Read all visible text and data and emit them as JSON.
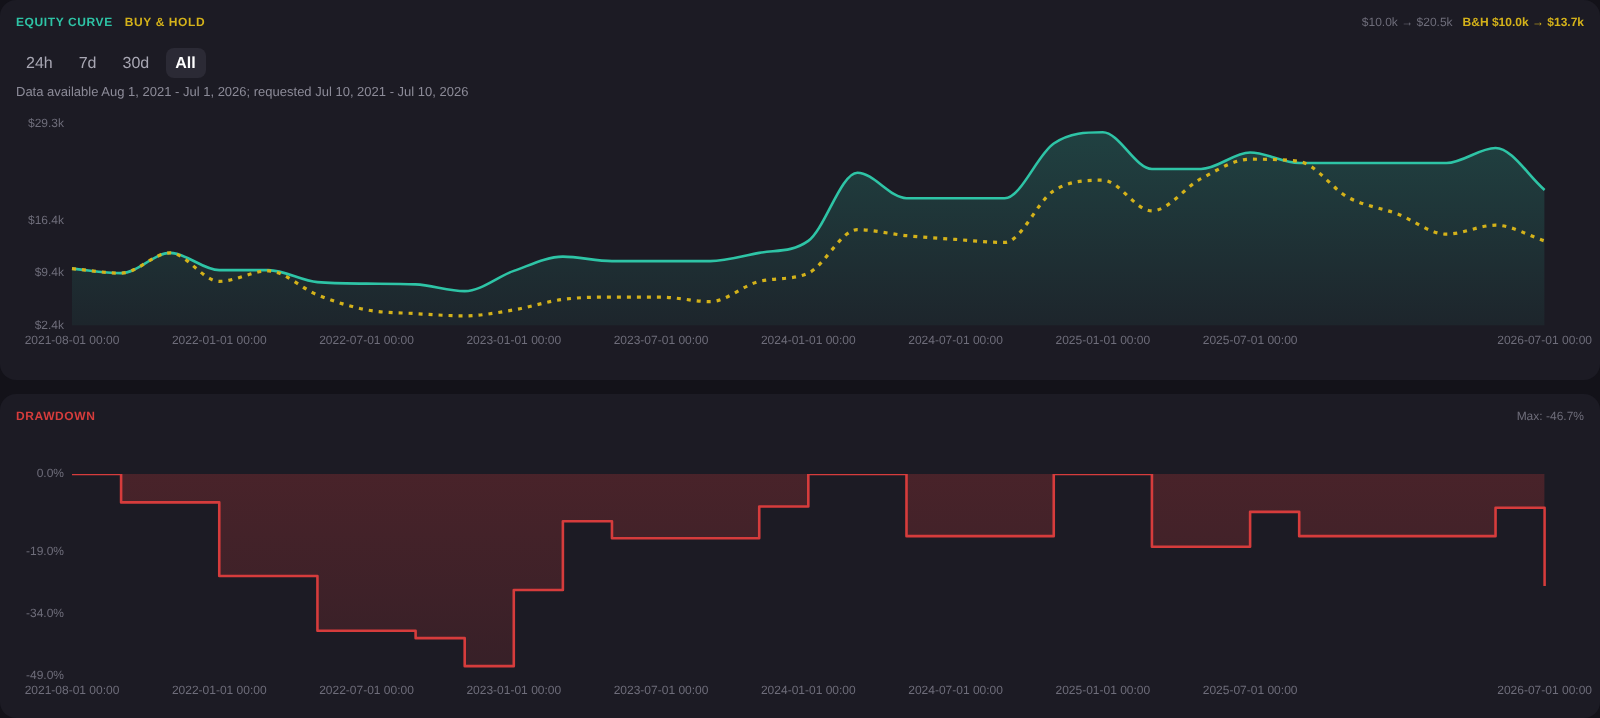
{
  "chart_data": [
    {
      "type": "line",
      "title": null,
      "subtitle": "Data available Aug 1, 2021 - Jul 1, 2026; requested Jul 10, 2021 - Jul 10, 2026",
      "annotations": [
        "$10.0k → $20.5k",
        "B&H $10.0k → $13.7k",
        "24h",
        "7d",
        "30d",
        "All"
      ],
      "categories": [
        "2021-08-01 00:00",
        null,
        null,
        "2022-01-01 00:00",
        null,
        null,
        "2022-07-01 00:00",
        null,
        null,
        "2023-01-01 00:00",
        null,
        null,
        "2023-07-01 00:00",
        null,
        null,
        "2024-01-01 00:00",
        null,
        null,
        "2024-07-01 00:00",
        null,
        null,
        "2025-01-01 00:00",
        null,
        null,
        "2025-07-01 00:00",
        null,
        null,
        null,
        null,
        null,
        "2026-07-01 00:00"
      ],
      "series": [
        {
          "name": "EQUITY CURVE",
          "type": "area",
          "color": "#2ec4a6",
          "line_style": "solid",
          "values": [
            10.0,
            9.4,
            12.1,
            9.8,
            9.8,
            8.2,
            8.0,
            7.9,
            7.0,
            9.7,
            11.6,
            11.0,
            11.0,
            11.0,
            12.1,
            13.7,
            22.8,
            19.4,
            19.4,
            19.4,
            26.7,
            28.2,
            23.3,
            23.3,
            25.5,
            24.1,
            24.1,
            24.1,
            24.1,
            26.1,
            20.5
          ]
        },
        {
          "name": "BUY & HOLD",
          "color": "#d4b21a",
          "line_style": "dotted",
          "values": [
            10.0,
            9.4,
            12.1,
            8.3,
            9.7,
            6.5,
            4.5,
            4.0,
            3.7,
            4.5,
            5.9,
            6.2,
            6.2,
            5.6,
            8.3,
            9.4,
            15.2,
            14.4,
            13.9,
            13.5,
            20.4,
            21.8,
            17.7,
            22.0,
            24.6,
            24.3,
            19.5,
            17.3,
            14.6,
            15.8,
            13.7
          ]
        }
      ],
      "ylim": [
        2.4,
        29.3
      ],
      "yticks": [
        {
          "value": 2.4,
          "label": "$2.4k"
        },
        {
          "value": 9.4,
          "label": "$9.4k"
        },
        {
          "value": 16.4,
          "label": "$16.4k"
        },
        {
          "value": 29.3,
          "label": "$29.3k"
        }
      ],
      "legend": "top left",
      "marker": "none"
    },
    {
      "type": "step",
      "title": "DRAWDOWN",
      "annotations": [
        "Max: -46.7%"
      ],
      "categories": [
        "2021-08-01 00:00",
        null,
        null,
        "2022-01-01 00:00",
        null,
        null,
        "2022-07-01 00:00",
        null,
        null,
        "2023-01-01 00:00",
        null,
        null,
        "2023-07-01 00:00",
        null,
        null,
        "2024-01-01 00:00",
        null,
        null,
        "2024-07-01 00:00",
        null,
        null,
        "2025-01-01 00:00",
        null,
        null,
        "2025-07-01 00:00",
        null,
        null,
        null,
        null,
        null,
        "2026-07-01 00:00"
      ],
      "series": [
        {
          "color": "#d63c3c",
          "values": [
            0,
            -6.9,
            -6.9,
            -24.8,
            -24.8,
            -38.1,
            -38.1,
            -39.9,
            -46.7,
            -28.2,
            -11.5,
            -15.6,
            -15.6,
            -15.6,
            -7.9,
            0,
            0,
            -15.1,
            -15.1,
            -15.1,
            0,
            0,
            -17.7,
            -17.7,
            -9.2,
            -15.1,
            -15.1,
            -15.1,
            -15.1,
            -8.2,
            -27.2
          ]
        }
      ],
      "ylim": [
        -49,
        0
      ],
      "yticks": [
        {
          "value": 0,
          "label": "0.0%"
        },
        {
          "value": -19,
          "label": "-19.0%"
        },
        {
          "value": -34,
          "label": "-34.0%"
        },
        {
          "value": -49,
          "label": "-49.0%"
        }
      ],
      "marker": "none"
    }
  ]
}
